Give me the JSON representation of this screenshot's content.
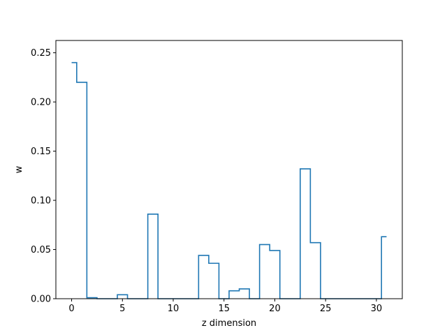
{
  "chart_data": {
    "type": "line",
    "drawstyle": "steps-mid",
    "title": "",
    "xlabel": "z dimension",
    "ylabel": "w",
    "xlim": [
      -1.55,
      32.55
    ],
    "ylim": [
      0.0,
      0.2625
    ],
    "xticks": [
      0,
      5,
      10,
      15,
      20,
      25,
      30
    ],
    "yticks": [
      0.0,
      0.05,
      0.1,
      0.15,
      0.2,
      0.25
    ],
    "ytick_labels": [
      "0.00",
      "0.05",
      "0.10",
      "0.15",
      "0.20",
      "0.25"
    ],
    "grid": false,
    "line_color": "#1f77b4",
    "series": [
      {
        "x": [
          0,
          1,
          2,
          3,
          4,
          5,
          6,
          7,
          8,
          9,
          10,
          11,
          12,
          13,
          14,
          15,
          16,
          17,
          18,
          19,
          20,
          21,
          22,
          23,
          24,
          25,
          26,
          27,
          28,
          29,
          30,
          31
        ],
        "values": [
          0.24,
          0.22,
          0.001,
          0.0,
          0.0,
          0.004,
          0.0,
          0.0,
          0.086,
          0.0,
          0.0,
          0.0,
          0.0,
          0.044,
          0.036,
          0.0,
          0.008,
          0.01,
          0.0,
          0.055,
          0.049,
          0.0,
          0.0,
          0.132,
          0.057,
          0.0,
          0.0,
          0.0,
          0.0,
          0.0,
          0.0,
          0.063
        ]
      }
    ]
  }
}
